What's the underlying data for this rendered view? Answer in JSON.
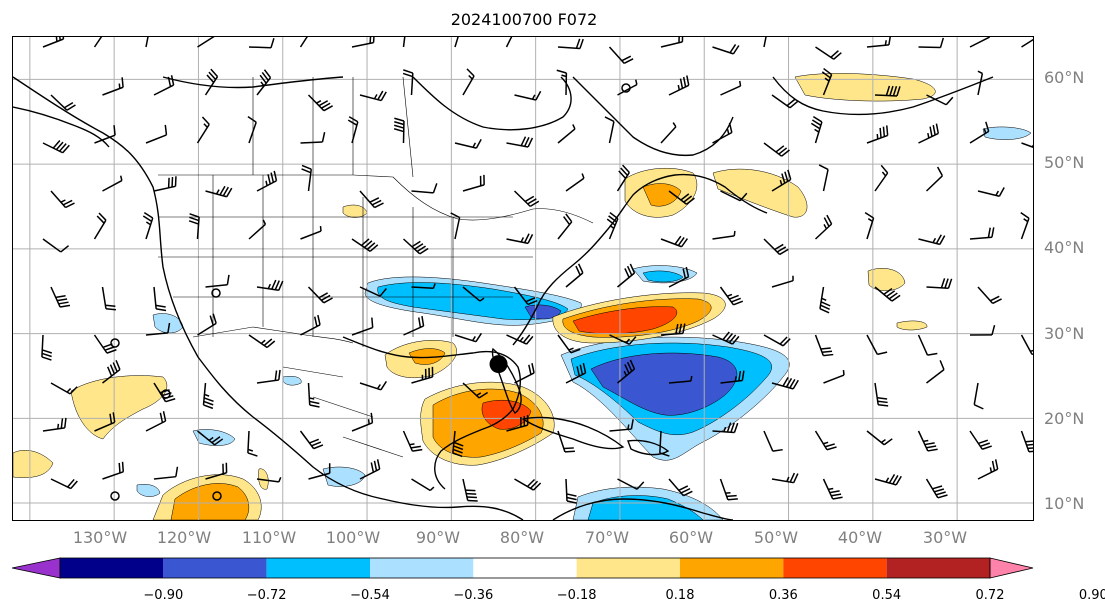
{
  "title": "2024100700 F072",
  "lat_labels": [
    "60°N",
    "50°N",
    "40°N",
    "30°N",
    "20°N",
    "10°N"
  ],
  "lon_labels": [
    "130°W",
    "120°W",
    "110°W",
    "100°W",
    "90°W",
    "80°W",
    "70°W",
    "60°W",
    "50°W",
    "40°W",
    "30°W"
  ],
  "colorbar": {
    "tick_labels": [
      "−0.90",
      "−0.72",
      "−0.54",
      "−0.36",
      "−0.18",
      "0.18",
      "0.36",
      "0.54",
      "0.72",
      "0.90"
    ],
    "colors": [
      "#9932cc",
      "#00008b",
      "#3a56d0",
      "#00bfff",
      "#abe0ff",
      "#ffffff",
      "#ffe68a",
      "#ffa500",
      "#ff4500",
      "#b22222",
      "#ff82ab"
    ]
  },
  "shading_colors": {
    "neg_light": "#abe0ff",
    "neg_mid": "#00bfff",
    "neg_strong": "#3a56d0",
    "pos_light": "#ffe68a",
    "pos_mid": "#ffa500",
    "pos_strong": "#ff4500"
  },
  "storm_marker": {
    "lon": -84.4,
    "lat": 26.4
  },
  "map_extent": {
    "lon_min": -142,
    "lon_max": -21,
    "lat_min": 8,
    "lat_max": 65
  }
}
